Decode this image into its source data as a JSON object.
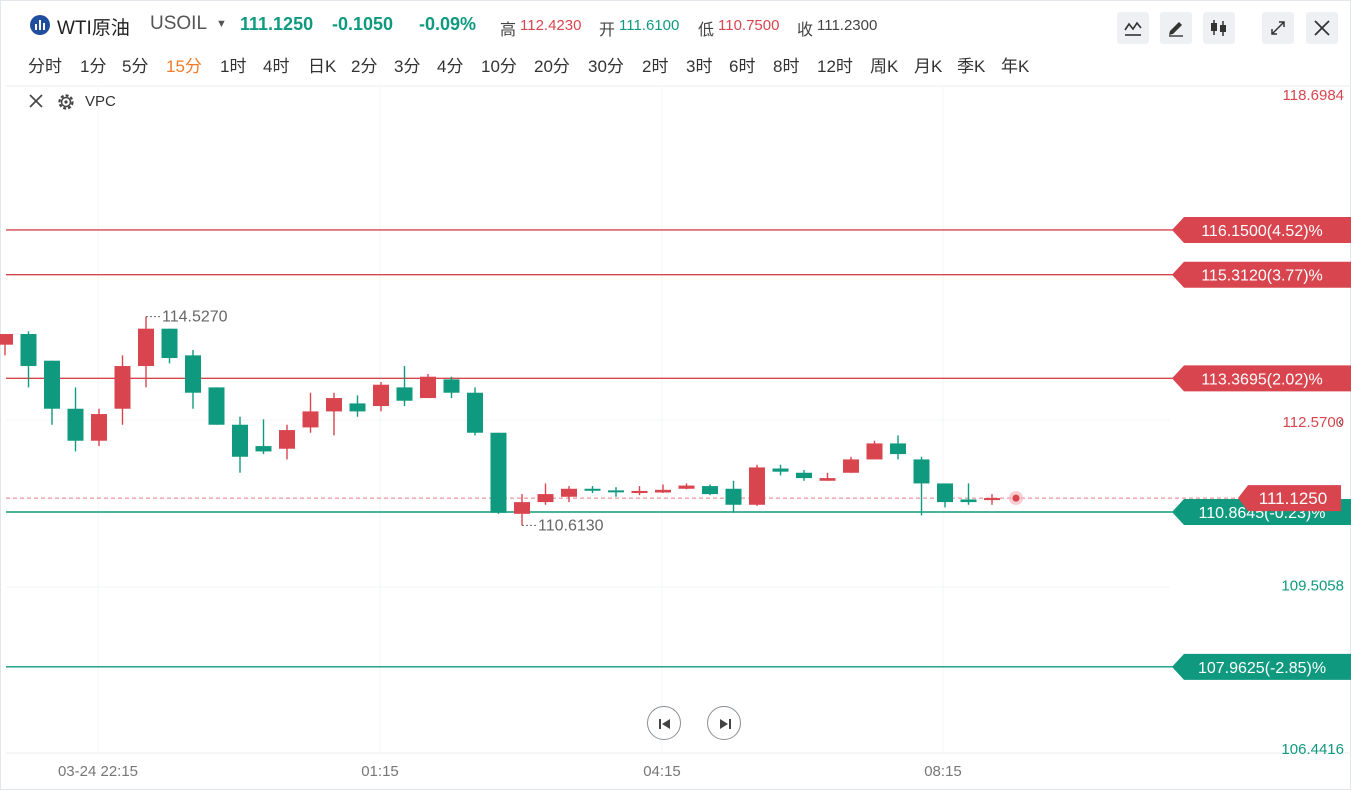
{
  "header": {
    "symbol": "WTI原油",
    "code": "USOIL",
    "last_price": "111.1250",
    "change": "-0.1050",
    "change_pct": "-0.09%",
    "high_label": "高",
    "high": "112.4230",
    "open_label": "开",
    "open": "111.6100",
    "low_label": "低",
    "low": "110.7500",
    "close_label": "收",
    "close": "111.2300",
    "tools": [
      "trend-line-icon",
      "pencil-icon",
      "candlestick-type-icon",
      "fullscreen-icon",
      "close-icon"
    ]
  },
  "periods": [
    "分时",
    "1分",
    "5分",
    "15分",
    "1时",
    "4时",
    "日K",
    "2分",
    "3分",
    "4分",
    "10分",
    "20分",
    "30分",
    "2时",
    "3时",
    "6时",
    "8时",
    "12时",
    "周K",
    "月K",
    "季K",
    "年K"
  ],
  "active_period": "15分",
  "indicator": {
    "name": "VPC"
  },
  "colors": {
    "up": "#d8454f",
    "down": "#0f9a7f",
    "accent": "#f07b28",
    "brand": "#1f4e9e"
  },
  "chart_data": {
    "type": "candlestick",
    "y_axis_labels": [
      "118.6984",
      "112.5700",
      "109.5058",
      "106.4416"
    ],
    "x_axis_labels": [
      "03-24 22:15",
      "01:15",
      "04:15",
      "08:15"
    ],
    "ylim": [
      106.4416,
      118.6984
    ],
    "current_price": "111.1250",
    "max_marker": "114.5270",
    "min_marker": "110.6130",
    "levels": [
      {
        "price": 116.15,
        "label": "116.1500(4.52)%",
        "color": "#d8454f"
      },
      {
        "price": 115.312,
        "label": "115.3120(3.77)%",
        "color": "#d8454f"
      },
      {
        "price": 113.3695,
        "label": "113.3695(2.02)%",
        "color": "#d8454f"
      },
      {
        "price": 110.8645,
        "label": "110.8645(-0.23)%",
        "color": "#0f9a7f"
      },
      {
        "price": 107.9625,
        "label": "107.9625(-2.85)%",
        "color": "#0f9a7f"
      }
    ],
    "candles": [
      {
        "o": 114.0,
        "h": 114.2,
        "c": 114.2,
        "l": 113.8
      },
      {
        "o": 114.2,
        "h": 114.25,
        "c": 113.6,
        "l": 113.2
      },
      {
        "o": 113.7,
        "h": 113.7,
        "c": 112.8,
        "l": 112.5
      },
      {
        "o": 112.8,
        "h": 113.2,
        "c": 112.2,
        "l": 112.0
      },
      {
        "o": 112.2,
        "h": 112.8,
        "c": 112.7,
        "l": 112.1
      },
      {
        "o": 112.8,
        "h": 113.8,
        "c": 113.6,
        "l": 112.5
      },
      {
        "o": 113.6,
        "h": 114.527,
        "c": 114.3,
        "l": 113.2
      },
      {
        "o": 114.3,
        "h": 114.3,
        "c": 113.75,
        "l": 113.65
      },
      {
        "o": 113.8,
        "h": 113.9,
        "c": 113.1,
        "l": 112.8
      },
      {
        "o": 113.2,
        "h": 113.2,
        "c": 112.5,
        "l": 112.5
      },
      {
        "o": 112.5,
        "h": 112.65,
        "c": 111.9,
        "l": 111.6
      },
      {
        "o": 112.1,
        "h": 112.6,
        "c": 112.0,
        "l": 111.95
      },
      {
        "o": 112.05,
        "h": 112.5,
        "c": 112.4,
        "l": 111.85
      },
      {
        "o": 112.45,
        "h": 113.1,
        "c": 112.75,
        "l": 112.35
      },
      {
        "o": 112.75,
        "h": 113.1,
        "c": 113.0,
        "l": 112.3
      },
      {
        "o": 112.9,
        "h": 113.05,
        "c": 112.75,
        "l": 112.65
      },
      {
        "o": 112.85,
        "h": 113.3,
        "c": 113.25,
        "l": 112.75
      },
      {
        "o": 113.2,
        "h": 113.6,
        "c": 112.95,
        "l": 112.85
      },
      {
        "o": 113.0,
        "h": 113.45,
        "c": 113.4,
        "l": 113.0
      },
      {
        "o": 113.35,
        "h": 113.4,
        "c": 113.1,
        "l": 113.0
      },
      {
        "o": 113.1,
        "h": 113.2,
        "c": 112.35,
        "l": 112.3
      },
      {
        "o": 112.35,
        "h": 112.35,
        "c": 110.85,
        "l": 110.83
      },
      {
        "o": 110.83,
        "h": 111.2,
        "c": 111.05,
        "l": 110.613
      },
      {
        "o": 111.05,
        "h": 111.4,
        "c": 111.2,
        "l": 111.0
      },
      {
        "o": 111.15,
        "h": 111.35,
        "c": 111.3,
        "l": 111.05
      },
      {
        "o": 111.3,
        "h": 111.35,
        "c": 111.28,
        "l": 111.22
      },
      {
        "o": 111.27,
        "h": 111.33,
        "c": 111.25,
        "l": 111.15
      },
      {
        "o": 111.22,
        "h": 111.35,
        "c": 111.26,
        "l": 111.18
      },
      {
        "o": 111.23,
        "h": 111.38,
        "c": 111.28,
        "l": 111.22
      },
      {
        "o": 111.3,
        "h": 111.4,
        "c": 111.36,
        "l": 111.29
      },
      {
        "o": 111.35,
        "h": 111.38,
        "c": 111.2,
        "l": 111.18
      },
      {
        "o": 111.3,
        "h": 111.45,
        "c": 111.0,
        "l": 110.85
      },
      {
        "o": 111.0,
        "h": 111.75,
        "c": 111.7,
        "l": 110.98
      },
      {
        "o": 111.68,
        "h": 111.75,
        "c": 111.62,
        "l": 111.55
      },
      {
        "o": 111.6,
        "h": 111.65,
        "c": 111.5,
        "l": 111.45
      },
      {
        "o": 111.45,
        "h": 111.6,
        "c": 111.5,
        "l": 111.45
      },
      {
        "o": 111.6,
        "h": 111.9,
        "c": 111.85,
        "l": 111.6
      },
      {
        "o": 111.85,
        "h": 112.2,
        "c": 112.15,
        "l": 111.85
      },
      {
        "o": 112.15,
        "h": 112.3,
        "c": 111.95,
        "l": 111.85
      },
      {
        "o": 111.85,
        "h": 111.9,
        "c": 111.4,
        "l": 110.8
      },
      {
        "o": 111.4,
        "h": 111.4,
        "c": 111.05,
        "l": 110.95
      },
      {
        "o": 111.1,
        "h": 111.4,
        "c": 111.05,
        "l": 111.0
      },
      {
        "o": 111.12,
        "h": 111.2,
        "c": 111.125,
        "l": 111.0
      }
    ]
  }
}
